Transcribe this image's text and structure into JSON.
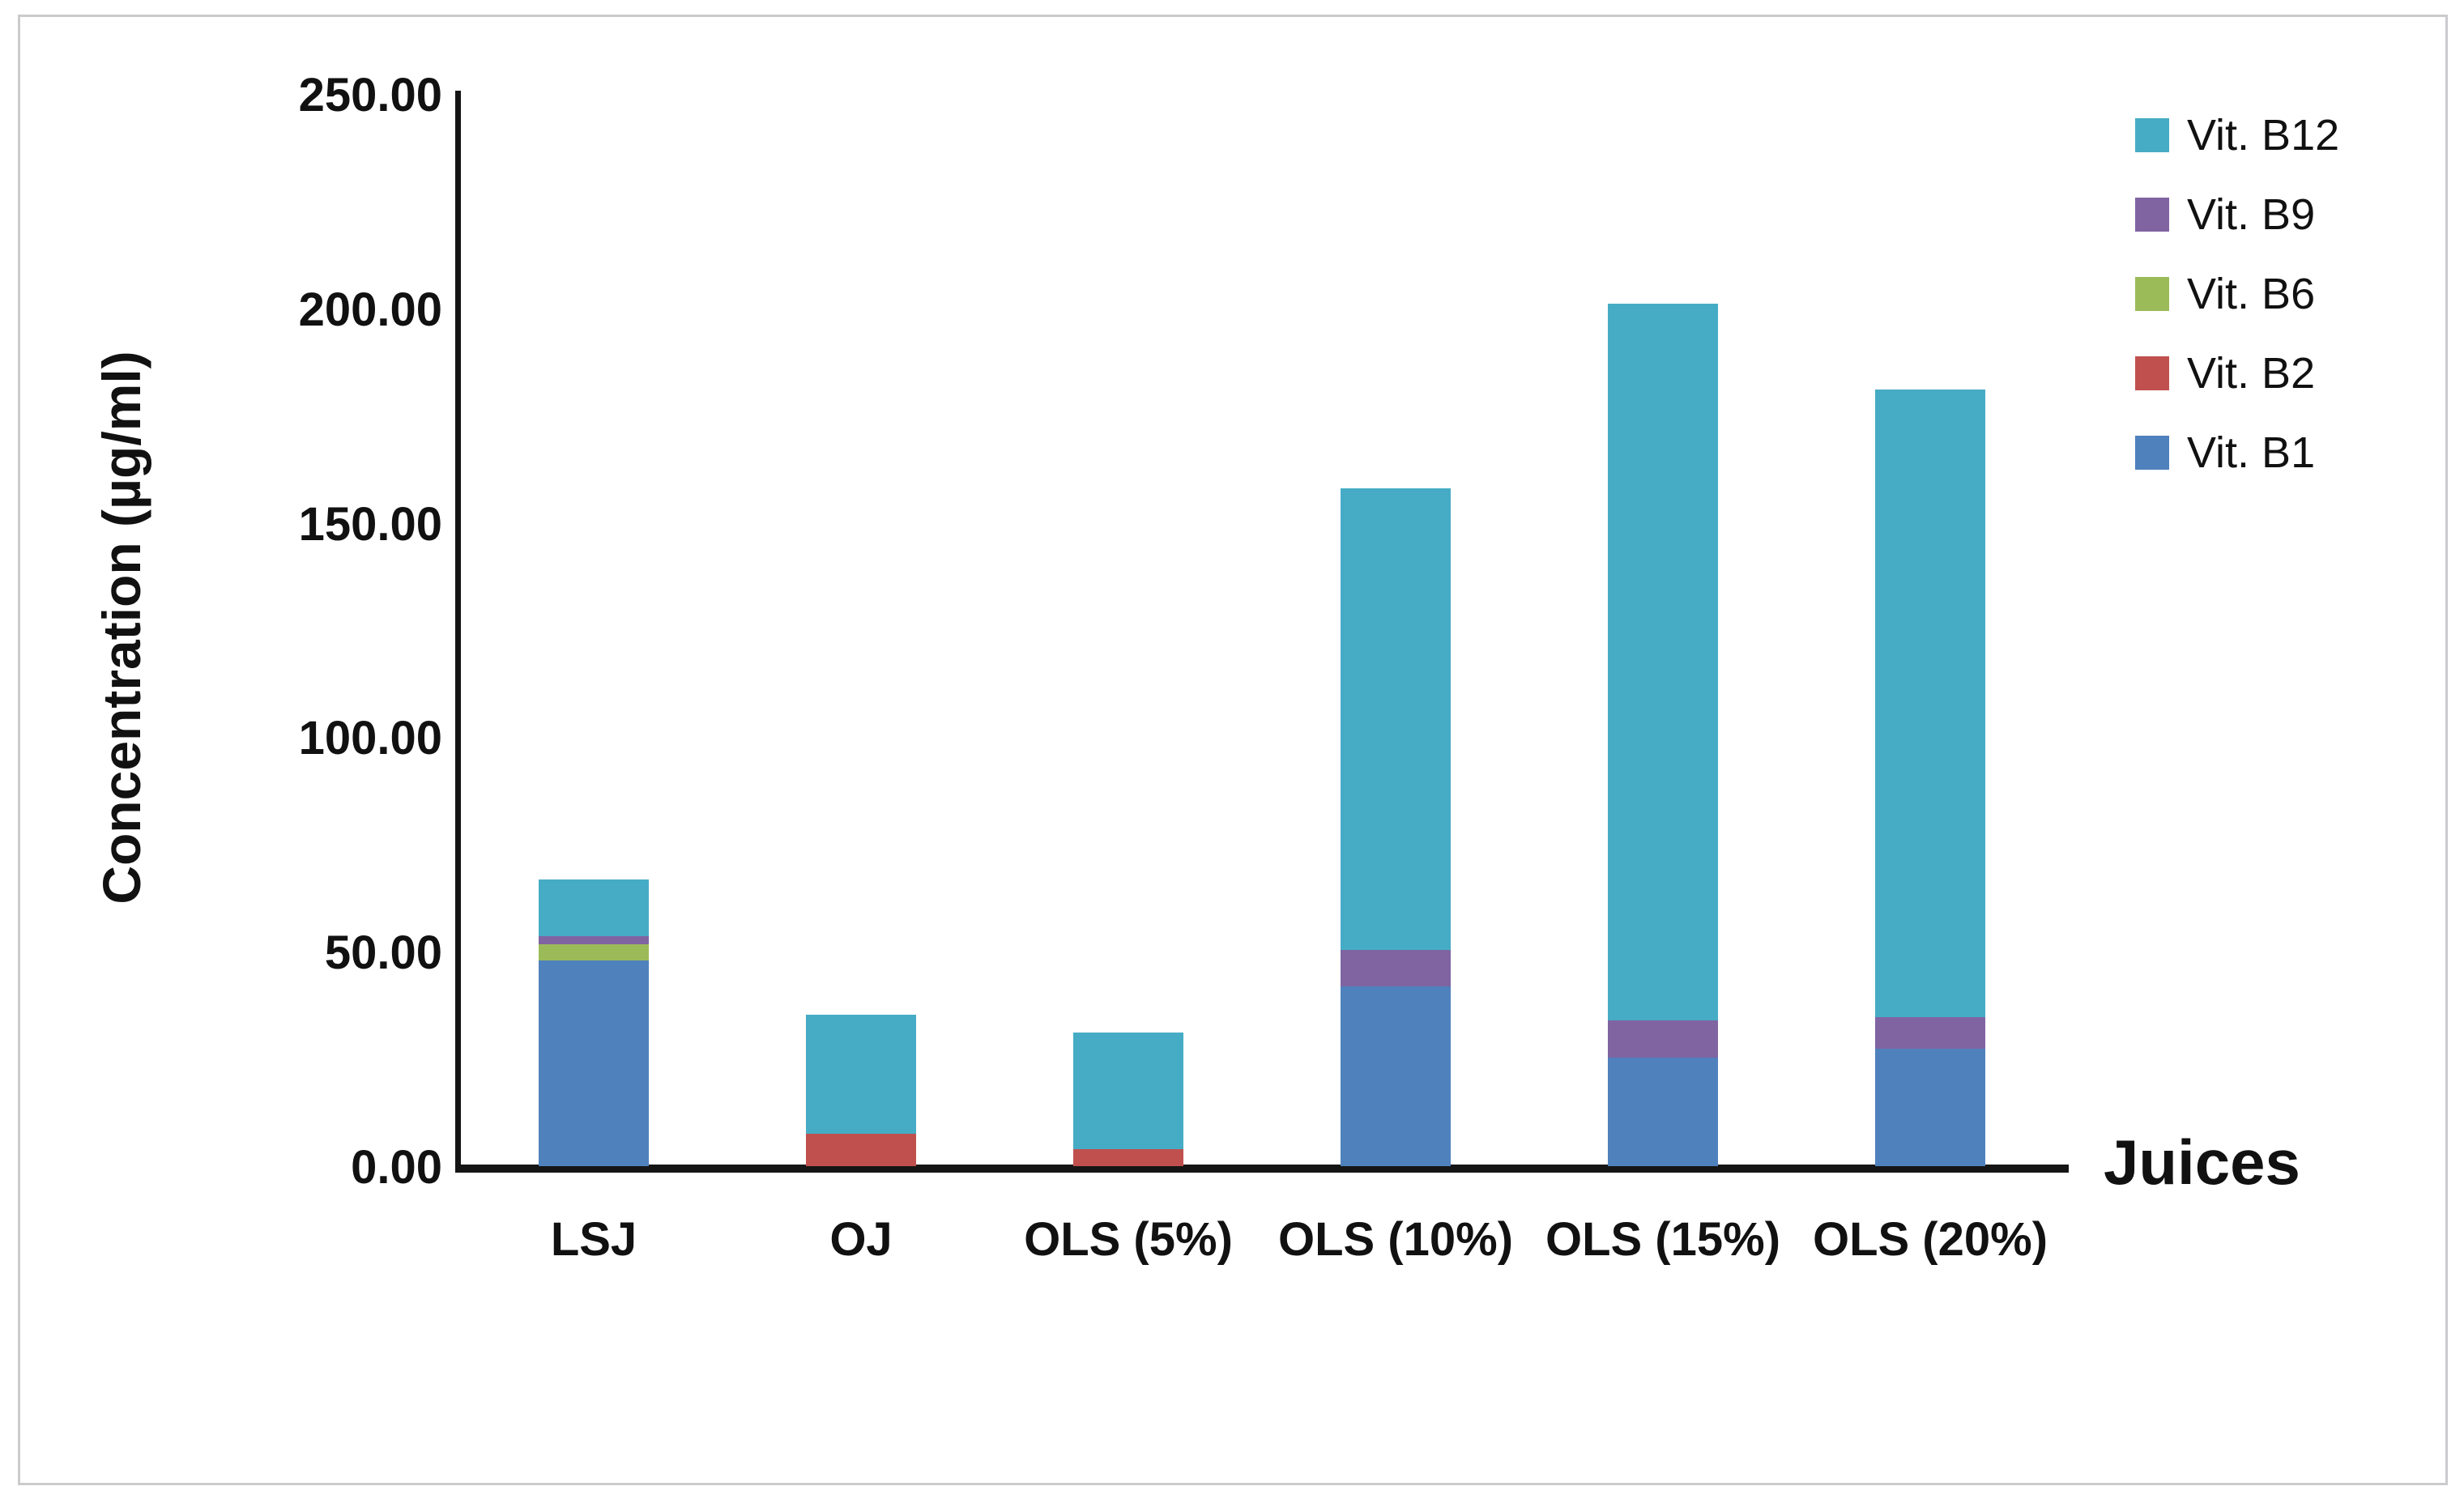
{
  "figure": {
    "background": "#ffffff",
    "border_color": "#cbcbce"
  },
  "y_axis": {
    "title": "Concentration (µg/ml)",
    "tick_labels": [
      "250.00",
      "200.00",
      "150.00",
      "100.00",
      "50.00",
      "0.00"
    ],
    "min": 0,
    "max": 250,
    "tick_step": 50
  },
  "x_axis": {
    "title": "Juices",
    "categories": [
      "LSJ",
      "OJ",
      "OLS (5%)",
      "OLS (10%)",
      "OLS (15%)",
      "OLS (20%)"
    ]
  },
  "legend": {
    "position": "right",
    "items": [
      {
        "label": "Vit. B12",
        "color": "#46ACC5"
      },
      {
        "label": "Vit. B9",
        "color": "#8064A2"
      },
      {
        "label": "Vit. B6",
        "color": "#9BBB59"
      },
      {
        "label": "Vit. B2",
        "color": "#C0504D"
      },
      {
        "label": "Vit. B1",
        "color": "#4F81BD"
      }
    ]
  },
  "chart_data": {
    "type": "bar",
    "stacked": true,
    "title": "",
    "xlabel": "Juices",
    "ylabel": "Concentration (µg/ml)",
    "ylim": [
      0,
      250
    ],
    "grid": false,
    "legend_position": "right",
    "categories": [
      "LSJ",
      "OJ",
      "OLS (5%)",
      "OLS (10%)",
      "OLS (15%)",
      "OLS (20%)"
    ],
    "series": [
      {
        "name": "Vit. B1",
        "color": "#4F81BD",
        "values": [
          48.0,
          0,
          0,
          41.9,
          25.3,
          27.4
        ]
      },
      {
        "name": "Vit. B2",
        "color": "#C0504D",
        "values": [
          0,
          7.6,
          4.0,
          0,
          0,
          0
        ]
      },
      {
        "name": "Vit. B6",
        "color": "#9BBB59",
        "values": [
          3.7,
          0,
          0,
          0,
          0,
          0
        ]
      },
      {
        "name": "Vit. B9",
        "color": "#8064A2",
        "values": [
          1.9,
          0,
          0,
          8.5,
          8.7,
          7.3
        ]
      },
      {
        "name": "Vit. B12",
        "color": "#46ACC5",
        "values": [
          13.2,
          27.7,
          27.2,
          107.6,
          167.1,
          146.4
        ]
      }
    ],
    "totals": [
      66.8,
      35.3,
      31.2,
      158.0,
      201.1,
      181.1
    ]
  }
}
